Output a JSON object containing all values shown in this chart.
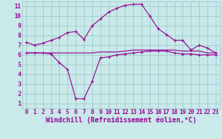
{
  "xlabel": "Windchill (Refroidissement éolien,°C)",
  "background_color": "#c8eaea",
  "grid_color": "#a0cccc",
  "line_color": "#990099",
  "ylim": [
    0.5,
    11.5
  ],
  "xlim": [
    -0.5,
    23.5
  ],
  "yticks": [
    1,
    2,
    3,
    4,
    5,
    6,
    7,
    8,
    9,
    10,
    11
  ],
  "xticks": [
    0,
    1,
    2,
    3,
    4,
    5,
    6,
    7,
    8,
    9,
    10,
    11,
    12,
    13,
    14,
    15,
    16,
    17,
    18,
    19,
    20,
    21,
    22,
    23
  ],
  "line1_x": [
    0,
    1,
    2,
    3,
    4,
    5,
    6,
    7,
    8,
    9,
    10,
    11,
    12,
    13,
    14,
    15,
    16,
    17,
    18,
    19,
    20,
    21,
    22,
    23
  ],
  "line1_y": [
    7.3,
    7.0,
    7.2,
    7.5,
    7.8,
    8.3,
    8.4,
    7.6,
    9.0,
    9.7,
    10.4,
    10.8,
    11.1,
    11.2,
    11.2,
    10.0,
    8.7,
    8.1,
    7.5,
    7.5,
    6.5,
    7.0,
    6.7,
    6.2
  ],
  "line2_x": [
    0,
    1,
    2,
    3,
    4,
    5,
    6,
    7,
    8,
    9,
    10,
    11,
    12,
    13,
    14,
    15,
    16,
    17,
    18,
    19,
    20,
    21,
    22,
    23
  ],
  "line2_y": [
    6.2,
    6.2,
    6.2,
    6.2,
    6.2,
    6.2,
    6.2,
    6.2,
    6.2,
    6.3,
    6.3,
    6.3,
    6.4,
    6.5,
    6.5,
    6.5,
    6.5,
    6.5,
    6.5,
    6.4,
    6.4,
    6.4,
    6.2,
    6.2
  ],
  "line3_x": [
    0,
    1,
    2,
    3,
    4,
    5,
    6,
    7,
    8,
    9,
    10,
    11,
    12,
    13,
    14,
    15,
    16,
    17,
    18,
    19,
    20,
    21,
    22,
    23
  ],
  "line3_y": [
    6.2,
    6.2,
    6.2,
    6.1,
    5.2,
    4.5,
    1.5,
    1.5,
    3.3,
    5.7,
    5.8,
    6.0,
    6.1,
    6.2,
    6.3,
    6.4,
    6.4,
    6.4,
    6.2,
    6.1,
    6.1,
    6.0,
    6.0,
    6.0
  ],
  "tick_fontsize": 6,
  "xlabel_fontsize": 7
}
